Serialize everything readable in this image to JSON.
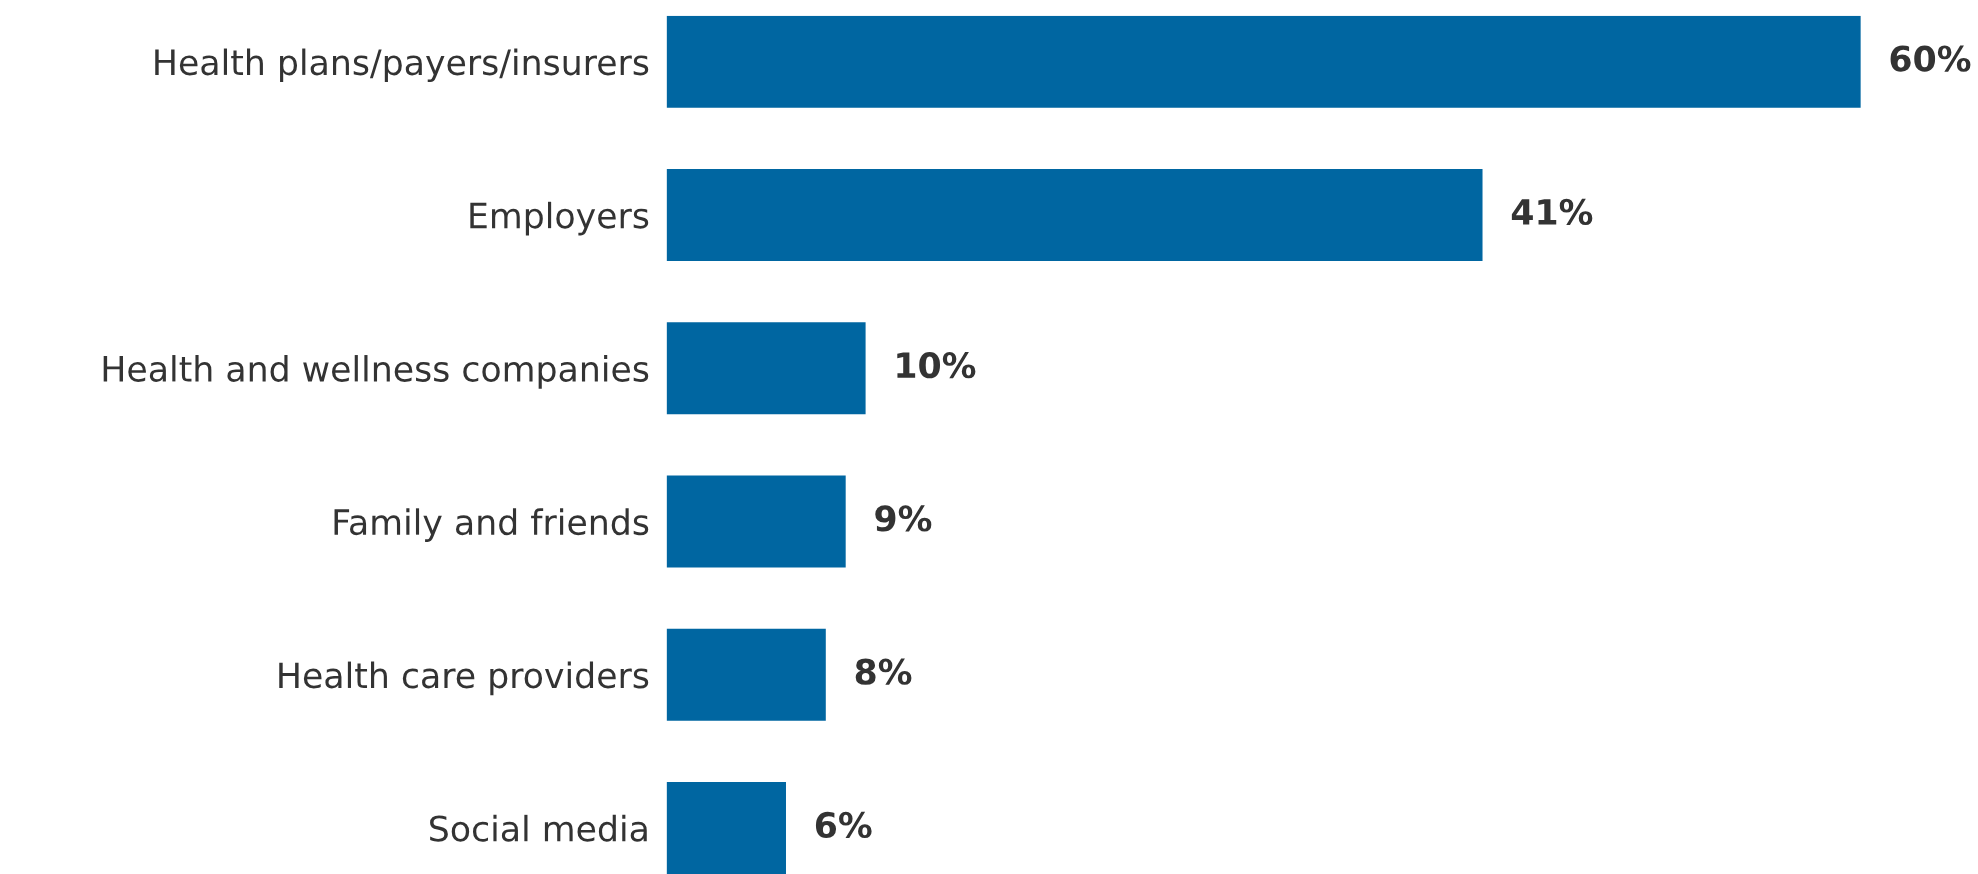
{
  "chart_data": {
    "type": "bar",
    "orientation": "horizontal",
    "categories": [
      "Health plans/payers/insurers",
      "Employers",
      "Health and wellness companies",
      "Family and friends",
      "Health care providers",
      "Social media"
    ],
    "series": [
      {
        "color": "#0066a1",
        "values": [
          60,
          41,
          10,
          9,
          8,
          6
        ],
        "value_labels": [
          "60%",
          "41%",
          "10%",
          "9%",
          "8%",
          "6%"
        ]
      }
    ],
    "grid": false,
    "legend": false
  }
}
